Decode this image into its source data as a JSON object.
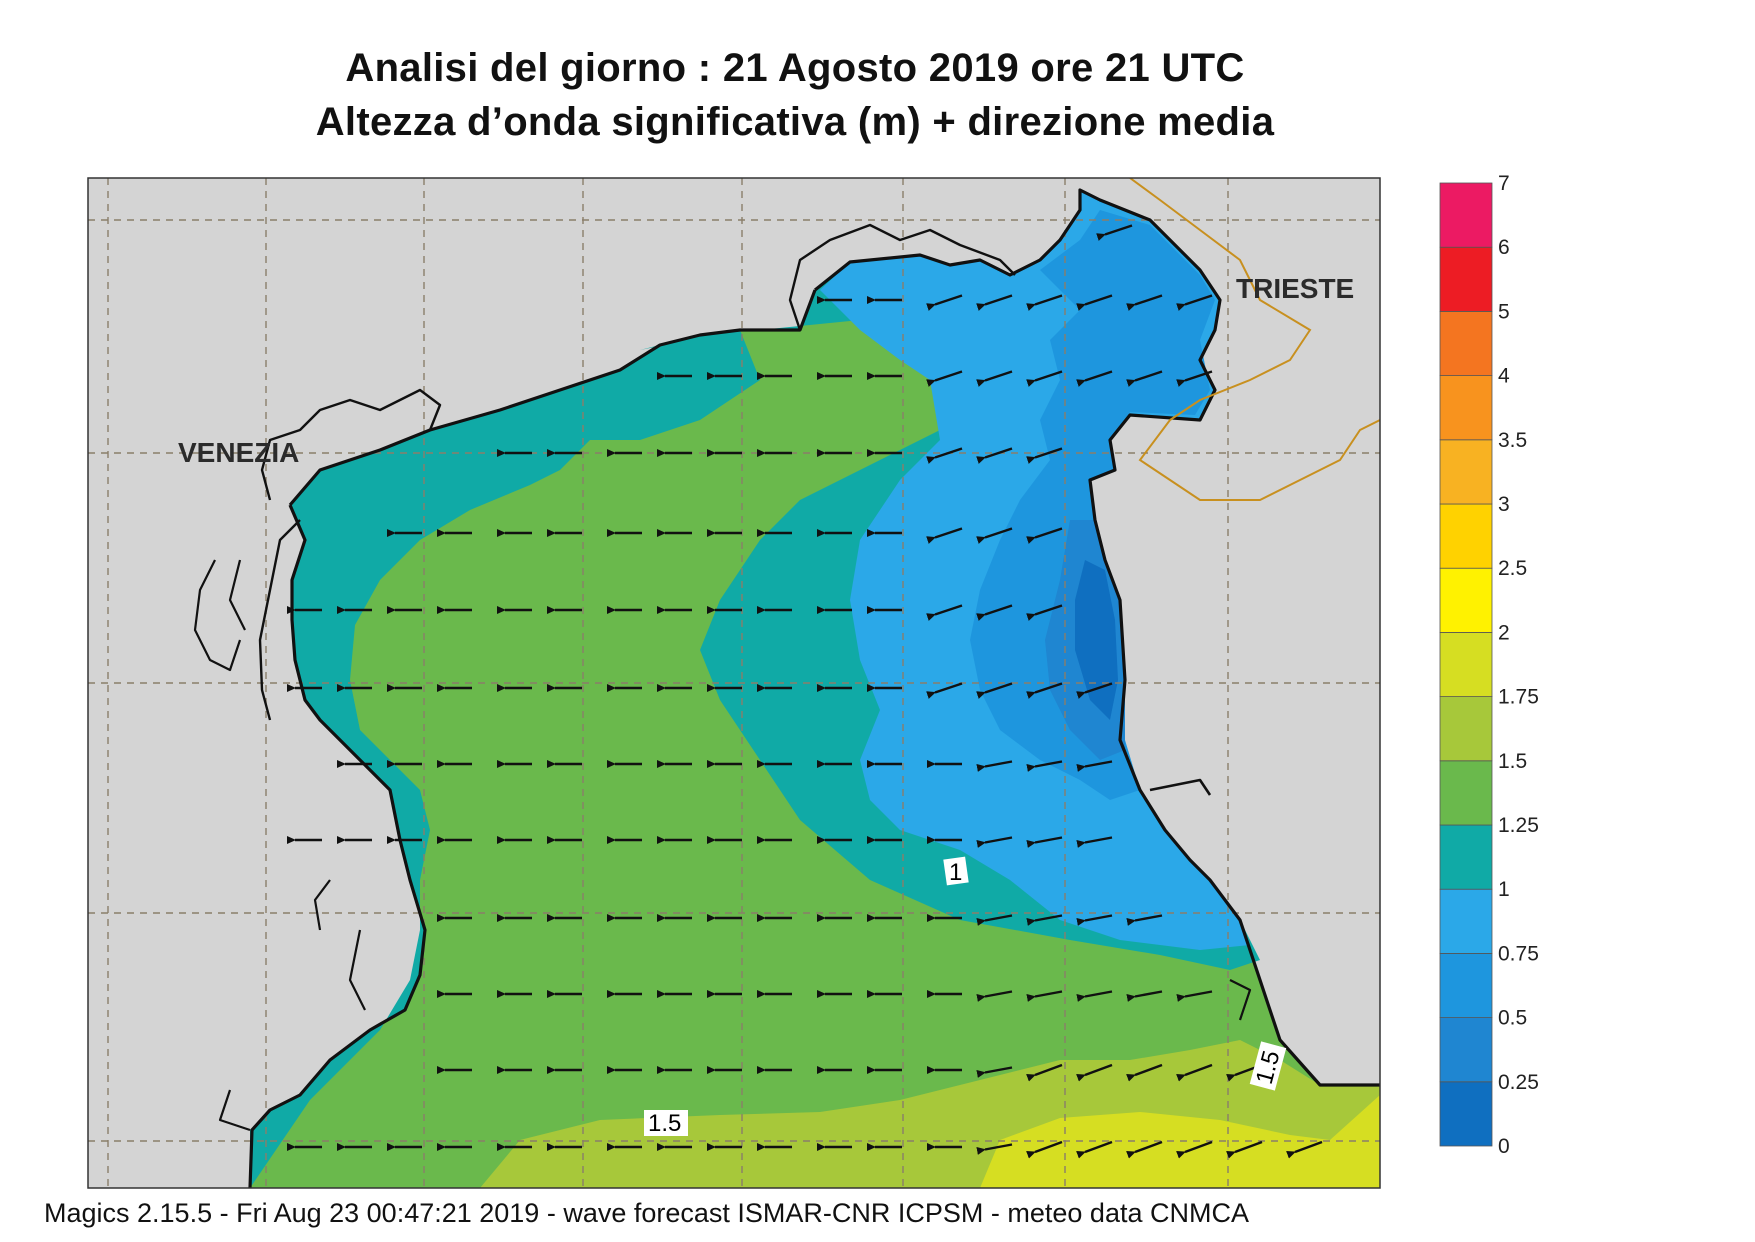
{
  "title": {
    "line1": "Analisi del giorno :  21   Agosto  2019   ore 21 UTC",
    "line2": "Altezza d’onda significativa (m) + direzione media"
  },
  "cities": {
    "venezia": "VENEZIA",
    "trieste": "TRIESTE"
  },
  "contour_labels": [
    "1",
    "1.5",
    "1.5"
  ],
  "legend": {
    "levels": [
      "0",
      "0.25",
      "0.5",
      "0.75",
      "1",
      "1.25",
      "1.5",
      "1.75",
      "2",
      "2.5",
      "3",
      "3.5",
      "4",
      "5",
      "6",
      "7"
    ],
    "colors": [
      "#0f6fc0",
      "#1f86d1",
      "#1e96de",
      "#2ba8e8",
      "#10aaa6",
      "#6ab94c",
      "#a7c83a",
      "#d6de22",
      "#fff200",
      "#ffd200",
      "#f8b222",
      "#f8931e",
      "#f47520",
      "#ed1c24",
      "#ec1a63"
    ]
  },
  "footer": "Magics 2.15.5 - Fri Aug 23 00:47:21 2019 - wave forecast  ISMAR-CNR  ICPSM - meteo data    CNMCA",
  "wave_direction": "from east (arrows pointing west)"
}
